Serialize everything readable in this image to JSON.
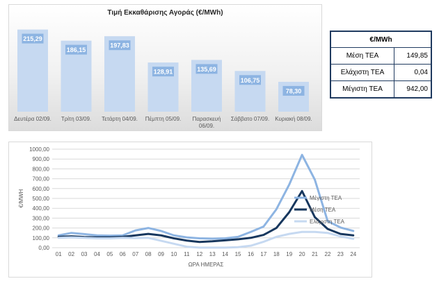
{
  "bar_chart": {
    "title": "Τιμή Εκκαθάρισης Αγοράς (€/MWh)"
  },
  "stats": {
    "header": "€/MWh",
    "rows": [
      {
        "label": "Μέση ΤΕΑ",
        "value": "149,85"
      },
      {
        "label": "Ελάχιστη ΤΕΑ",
        "value": "0,04"
      },
      {
        "label": "Μέγιστη ΤΕΑ",
        "value": "942,00"
      }
    ]
  },
  "chart_data": [
    {
      "type": "bar",
      "title": "Τιμή Εκκαθάρισης Αγοράς (€/MWh)",
      "categories": [
        "Δευτέρα 02/09.",
        "Τρίτη 03/09.",
        "Τετάρτη 04/09.",
        "Πέμπτη 05/09.",
        "Παρασκευή 06/09.",
        "Σάββατο 07/09.",
        "Κυριακή 08/09."
      ],
      "values": [
        215.29,
        186.15,
        197.83,
        128.91,
        135.69,
        106.75,
        78.3
      ],
      "value_labels": [
        "215,29",
        "186,15",
        "197,83",
        "128,91",
        "135,69",
        "106,75",
        "78,30"
      ],
      "ylim": [
        0,
        240
      ],
      "color": "#c6d9f1",
      "label_color": "#8db4e2"
    },
    {
      "type": "line",
      "xlabel": "ΩΡΑ ΗΜΕΡΑΣ",
      "ylabel": "€/MWH",
      "ylim": [
        0,
        1000
      ],
      "yticks": [
        0,
        100,
        200,
        300,
        400,
        500,
        600,
        700,
        800,
        900,
        1000
      ],
      "ytick_labels": [
        "0,00",
        "100,00",
        "200,00",
        "300,00",
        "400,00",
        "500,00",
        "600,00",
        "700,00",
        "800,00",
        "900,00",
        "1000,00"
      ],
      "x": [
        "01",
        "02",
        "03",
        "04",
        "05",
        "06",
        "07",
        "08",
        "09",
        "10",
        "11",
        "12",
        "13",
        "14",
        "15",
        "16",
        "17",
        "18",
        "19",
        "20",
        "21",
        "22",
        "23",
        "24"
      ],
      "grid": true,
      "legend": "right",
      "series": [
        {
          "name": "Μέγιστη ΤΕΑ",
          "color": "#8db4e2",
          "width": 3,
          "values": [
            125,
            150,
            138,
            125,
            122,
            125,
            175,
            200,
            170,
            125,
            105,
            95,
            92,
            95,
            110,
            160,
            215,
            390,
            640,
            942,
            690,
            270,
            205,
            170
          ]
        },
        {
          "name": "Μέση ΤΕΑ",
          "color": "#17375e",
          "width": 3,
          "values": [
            110,
            115,
            108,
            105,
            105,
            110,
            125,
            140,
            125,
            95,
            72,
            58,
            65,
            75,
            85,
            100,
            130,
            200,
            360,
            575,
            310,
            190,
            140,
            125
          ]
        },
        {
          "name": "Ελάχιστη ΤΕΑ",
          "color": "#c6d9f1",
          "width": 3,
          "values": [
            100,
            105,
            100,
            95,
            95,
            100,
            98,
            100,
            70,
            40,
            10,
            1,
            1,
            1,
            5,
            20,
            60,
            110,
            140,
            160,
            160,
            150,
            115,
            90
          ]
        }
      ]
    }
  ]
}
